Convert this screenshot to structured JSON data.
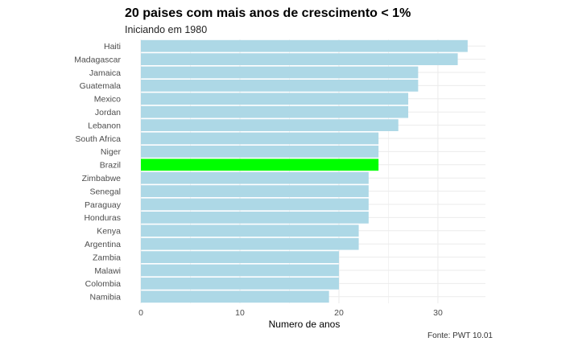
{
  "header": {
    "title": "20 paises com mais anos de crescimento < 1%",
    "subtitle": "Iniciando em 1980"
  },
  "caption": "Fonte: PWT 10.01",
  "colors": {
    "bar": "#add8e6",
    "highlight": "#00ff00",
    "grid": "#ebebeb"
  },
  "chart_data": {
    "type": "bar",
    "orientation": "horizontal",
    "title": "20 paises com mais anos de crescimento < 1%",
    "subtitle": "Iniciando em 1980",
    "xlabel": "Numero de anos",
    "ylabel": "",
    "xlim": [
      0,
      34.8
    ],
    "xticks": [
      0,
      10,
      20,
      30
    ],
    "grid": true,
    "highlight": "Brazil",
    "categories": [
      "Haiti",
      "Madagascar",
      "Jamaica",
      "Guatemala",
      "Mexico",
      "Jordan",
      "Lebanon",
      "South Africa",
      "Niger",
      "Brazil",
      "Zimbabwe",
      "Senegal",
      "Paraguay",
      "Honduras",
      "Kenya",
      "Argentina",
      "Zambia",
      "Malawi",
      "Colombia",
      "Namibia"
    ],
    "values": [
      33,
      32,
      28,
      28,
      27,
      27,
      26,
      24,
      24,
      24,
      23,
      23,
      23,
      23,
      22,
      22,
      20,
      20,
      20,
      19
    ]
  }
}
